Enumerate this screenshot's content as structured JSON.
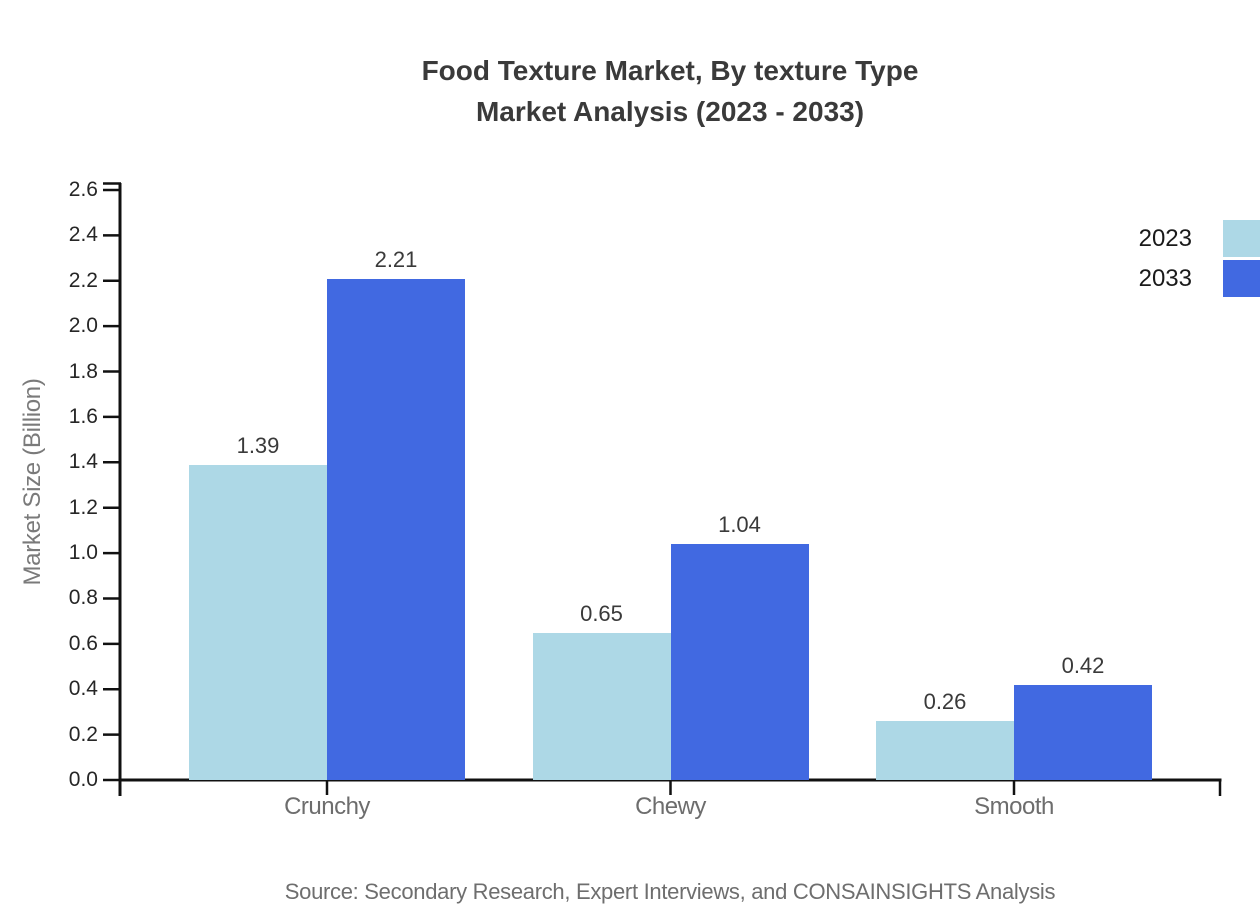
{
  "chart_data": {
    "type": "bar",
    "title_lines": [
      "Food Texture Market, By texture Type",
      "Market Analysis (2023 - 2033)"
    ],
    "categories": [
      "Crunchy",
      "Chewy",
      "Smooth"
    ],
    "series": [
      {
        "name": "2023",
        "color": "#ADD8E6",
        "values": [
          1.39,
          0.65,
          0.26
        ]
      },
      {
        "name": "2033",
        "color": "#4169E1",
        "values": [
          2.21,
          1.04,
          0.42
        ]
      }
    ],
    "xlabel": "",
    "ylabel": "Market Size (Billion)",
    "ylim": [
      0.0,
      2.6
    ],
    "ytick_step": 0.2,
    "ytick_labels": [
      "0.0",
      "0.2",
      "0.4",
      "0.6",
      "0.8",
      "1.0",
      "1.2",
      "1.4",
      "1.6",
      "1.8",
      "2.0",
      "2.2",
      "2.4",
      "2.6"
    ],
    "value_labels": [
      "1.39",
      "2.21",
      "0.65",
      "1.04",
      "0.26",
      "0.42"
    ],
    "grid": false,
    "legend_position": "upper-right-clipped",
    "source_note": "Source: Secondary Research, Expert Interviews, and CONSAINSIGHTS Analysis"
  },
  "colors": {
    "series_2023": "#ADD8E6",
    "series_2033": "#4169E1",
    "axis": "#111111",
    "title_text": "#3a3a3a",
    "tick_text": "#262626",
    "muted_text": "#6e6e6e"
  }
}
